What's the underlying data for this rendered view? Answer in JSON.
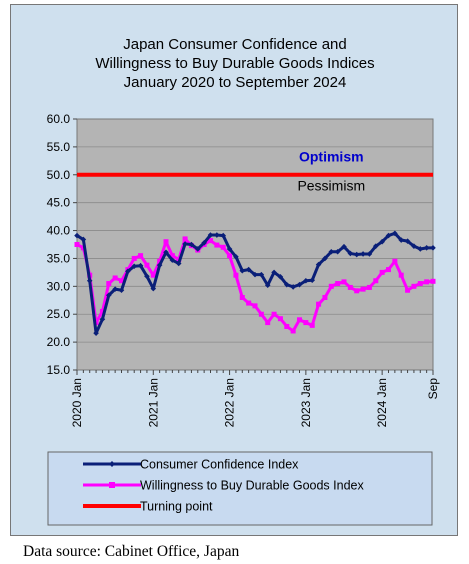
{
  "chart_data": {
    "type": "line",
    "title": [
      "Japan Consumer Confidence and",
      "Willingness to Buy Durable Goods Indices",
      "January 2020 to September 2024"
    ],
    "xlabel": "",
    "ylabel": "",
    "ylim": [
      15,
      60
    ],
    "yticks": [
      "15.0",
      "20.0",
      "25.0",
      "30.0",
      "35.0",
      "40.0",
      "45.0",
      "50.0",
      "55.0",
      "60.0"
    ],
    "x_tick_labels": [
      "2020 Jan",
      "2021 Jan",
      "2022 Jan",
      "2023 Jan",
      "2024 Jan",
      "Sep"
    ],
    "x_tick_months": [
      0,
      12,
      24,
      36,
      48,
      56
    ],
    "x_range": [
      0,
      56
    ],
    "grid": true,
    "annotations": [
      {
        "text": "Optimism",
        "x": 40,
        "y": 52.4,
        "color": "#0000cc",
        "bold": true
      },
      {
        "text": "Pessimism",
        "x": 40,
        "y": 47.2,
        "color": "#000000",
        "bold": false
      }
    ],
    "series": [
      {
        "name": "Consumer Confidence Index",
        "color": "#0a1f78",
        "values": [
          39.1,
          38.4,
          31.0,
          21.6,
          24.1,
          28.4,
          29.5,
          29.3,
          32.7,
          33.6,
          33.7,
          31.8,
          29.6,
          33.8,
          36.1,
          34.7,
          34.1,
          37.6,
          37.5,
          36.7,
          37.8,
          39.2,
          39.2,
          39.1,
          36.7,
          35.3,
          32.8,
          33.0,
          32.1,
          32.1,
          30.2,
          32.5,
          31.7,
          30.3,
          29.9,
          30.3,
          31.0,
          31.1,
          33.9,
          35.0,
          36.2,
          36.2,
          37.1,
          35.9,
          35.7,
          35.8,
          35.8,
          37.2,
          38.0,
          39.1,
          39.5,
          38.3,
          38.1,
          37.2,
          36.7,
          36.9,
          36.9
        ]
      },
      {
        "name": "Willingness to Buy Durable Goods Index",
        "color": "#ff00ff",
        "values": [
          37.5,
          36.9,
          32.0,
          23.5,
          25.5,
          30.5,
          31.5,
          31.0,
          33.0,
          35.0,
          35.5,
          33.8,
          32.0,
          34.5,
          38.0,
          35.5,
          34.8,
          38.5,
          37.3,
          36.5,
          37.5,
          38.2,
          37.4,
          37.0,
          35.5,
          32.0,
          28.0,
          27.0,
          26.5,
          25.0,
          23.5,
          25.0,
          24.2,
          22.8,
          22.0,
          24.0,
          23.5,
          23.0,
          26.8,
          28.0,
          30.0,
          30.5,
          30.8,
          29.8,
          29.2,
          29.5,
          29.8,
          31.0,
          32.5,
          33.0,
          34.5,
          32.0,
          29.3,
          30.0,
          30.5,
          30.8,
          30.9
        ]
      },
      {
        "name": "Turning point",
        "color": "#ff0000",
        "values": [
          50,
          50
        ]
      }
    ],
    "legend_position": "bottom"
  },
  "source_text": "Data source: Cabinet Office, Japan"
}
